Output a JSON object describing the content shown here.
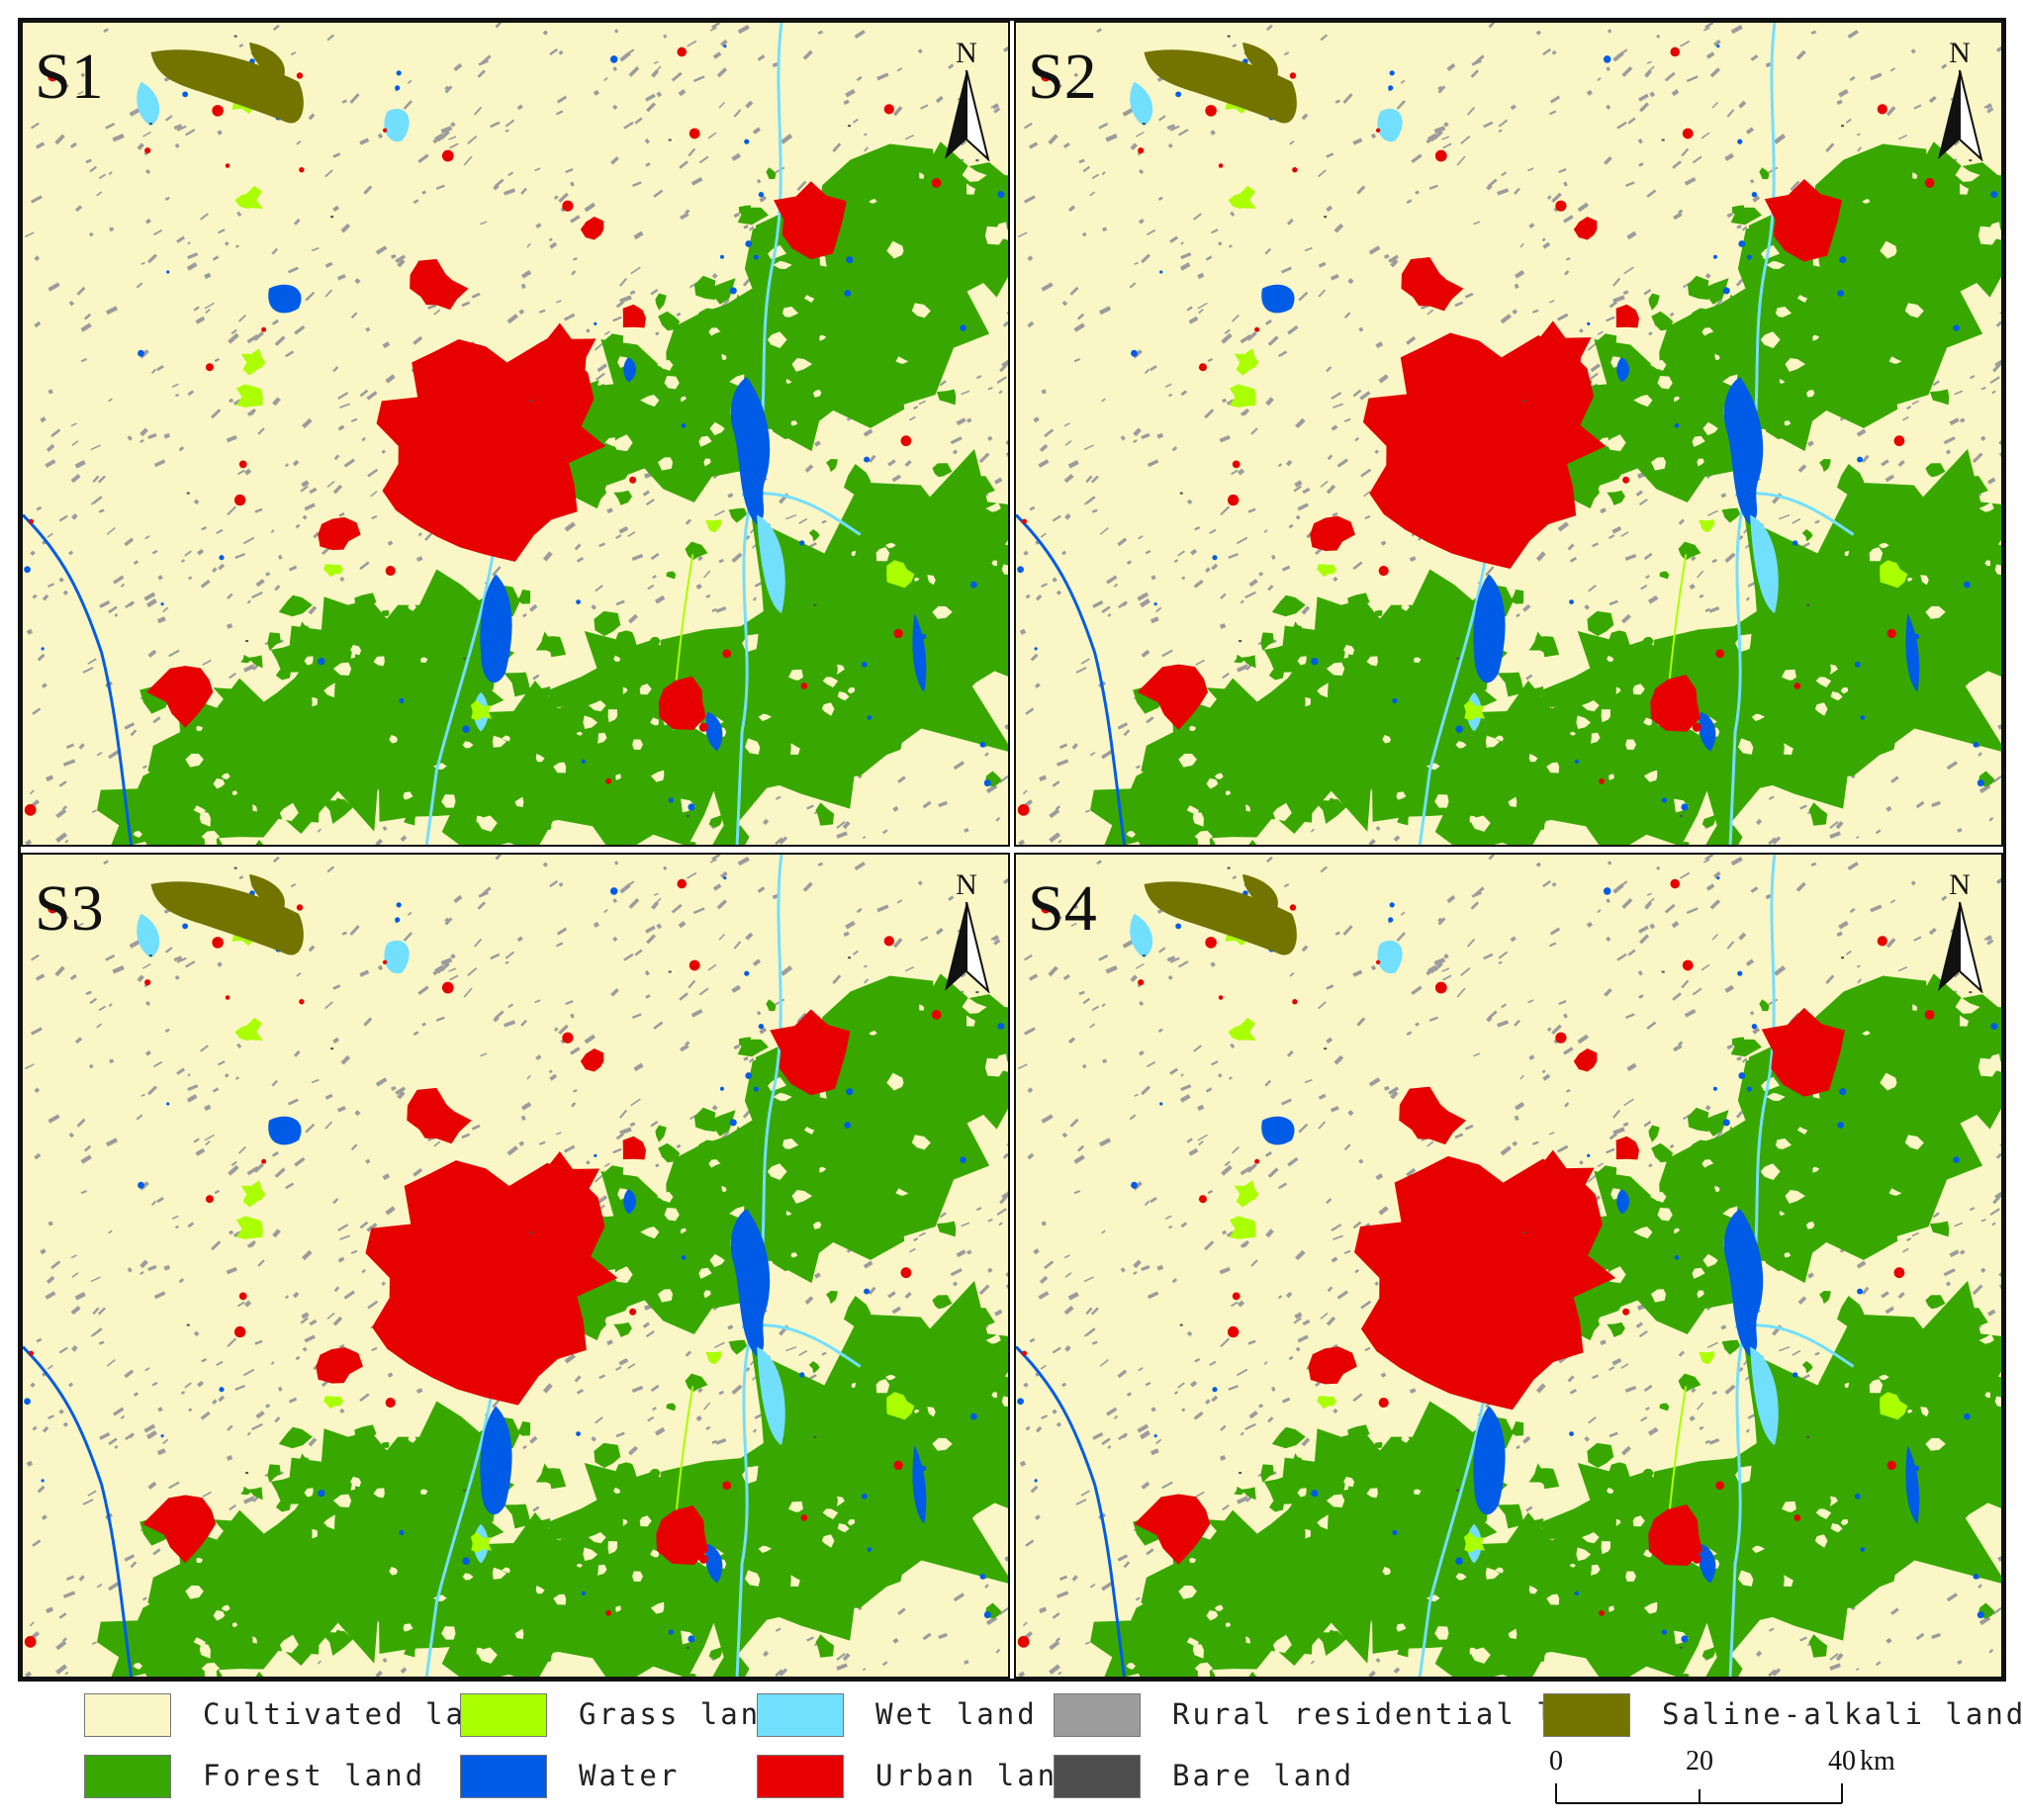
{
  "panels": [
    {
      "label": "S1"
    },
    {
      "label": "S2"
    },
    {
      "label": "S3"
    },
    {
      "label": "S4"
    }
  ],
  "north_arrow": {
    "letter": "N"
  },
  "legend": {
    "items": [
      {
        "label": "Cultivated land",
        "color": "#fbf6c6"
      },
      {
        "label": "Grass land",
        "color": "#aaff00"
      },
      {
        "label": "Wet land",
        "color": "#73dfff"
      },
      {
        "label": "Rural residential land",
        "color": "#9c9c9c"
      },
      {
        "label": "Saline-alkali land",
        "color": "#737300"
      },
      {
        "label": "Forest land",
        "color": "#38a800"
      },
      {
        "label": "Water",
        "color": "#005ce6"
      },
      {
        "label": "Urban land",
        "color": "#e60000"
      },
      {
        "label": "Bare land",
        "color": "#4e4e4e"
      }
    ]
  },
  "scale_bar": {
    "ticks": [
      "0",
      "20",
      "40"
    ],
    "unit": "km"
  }
}
